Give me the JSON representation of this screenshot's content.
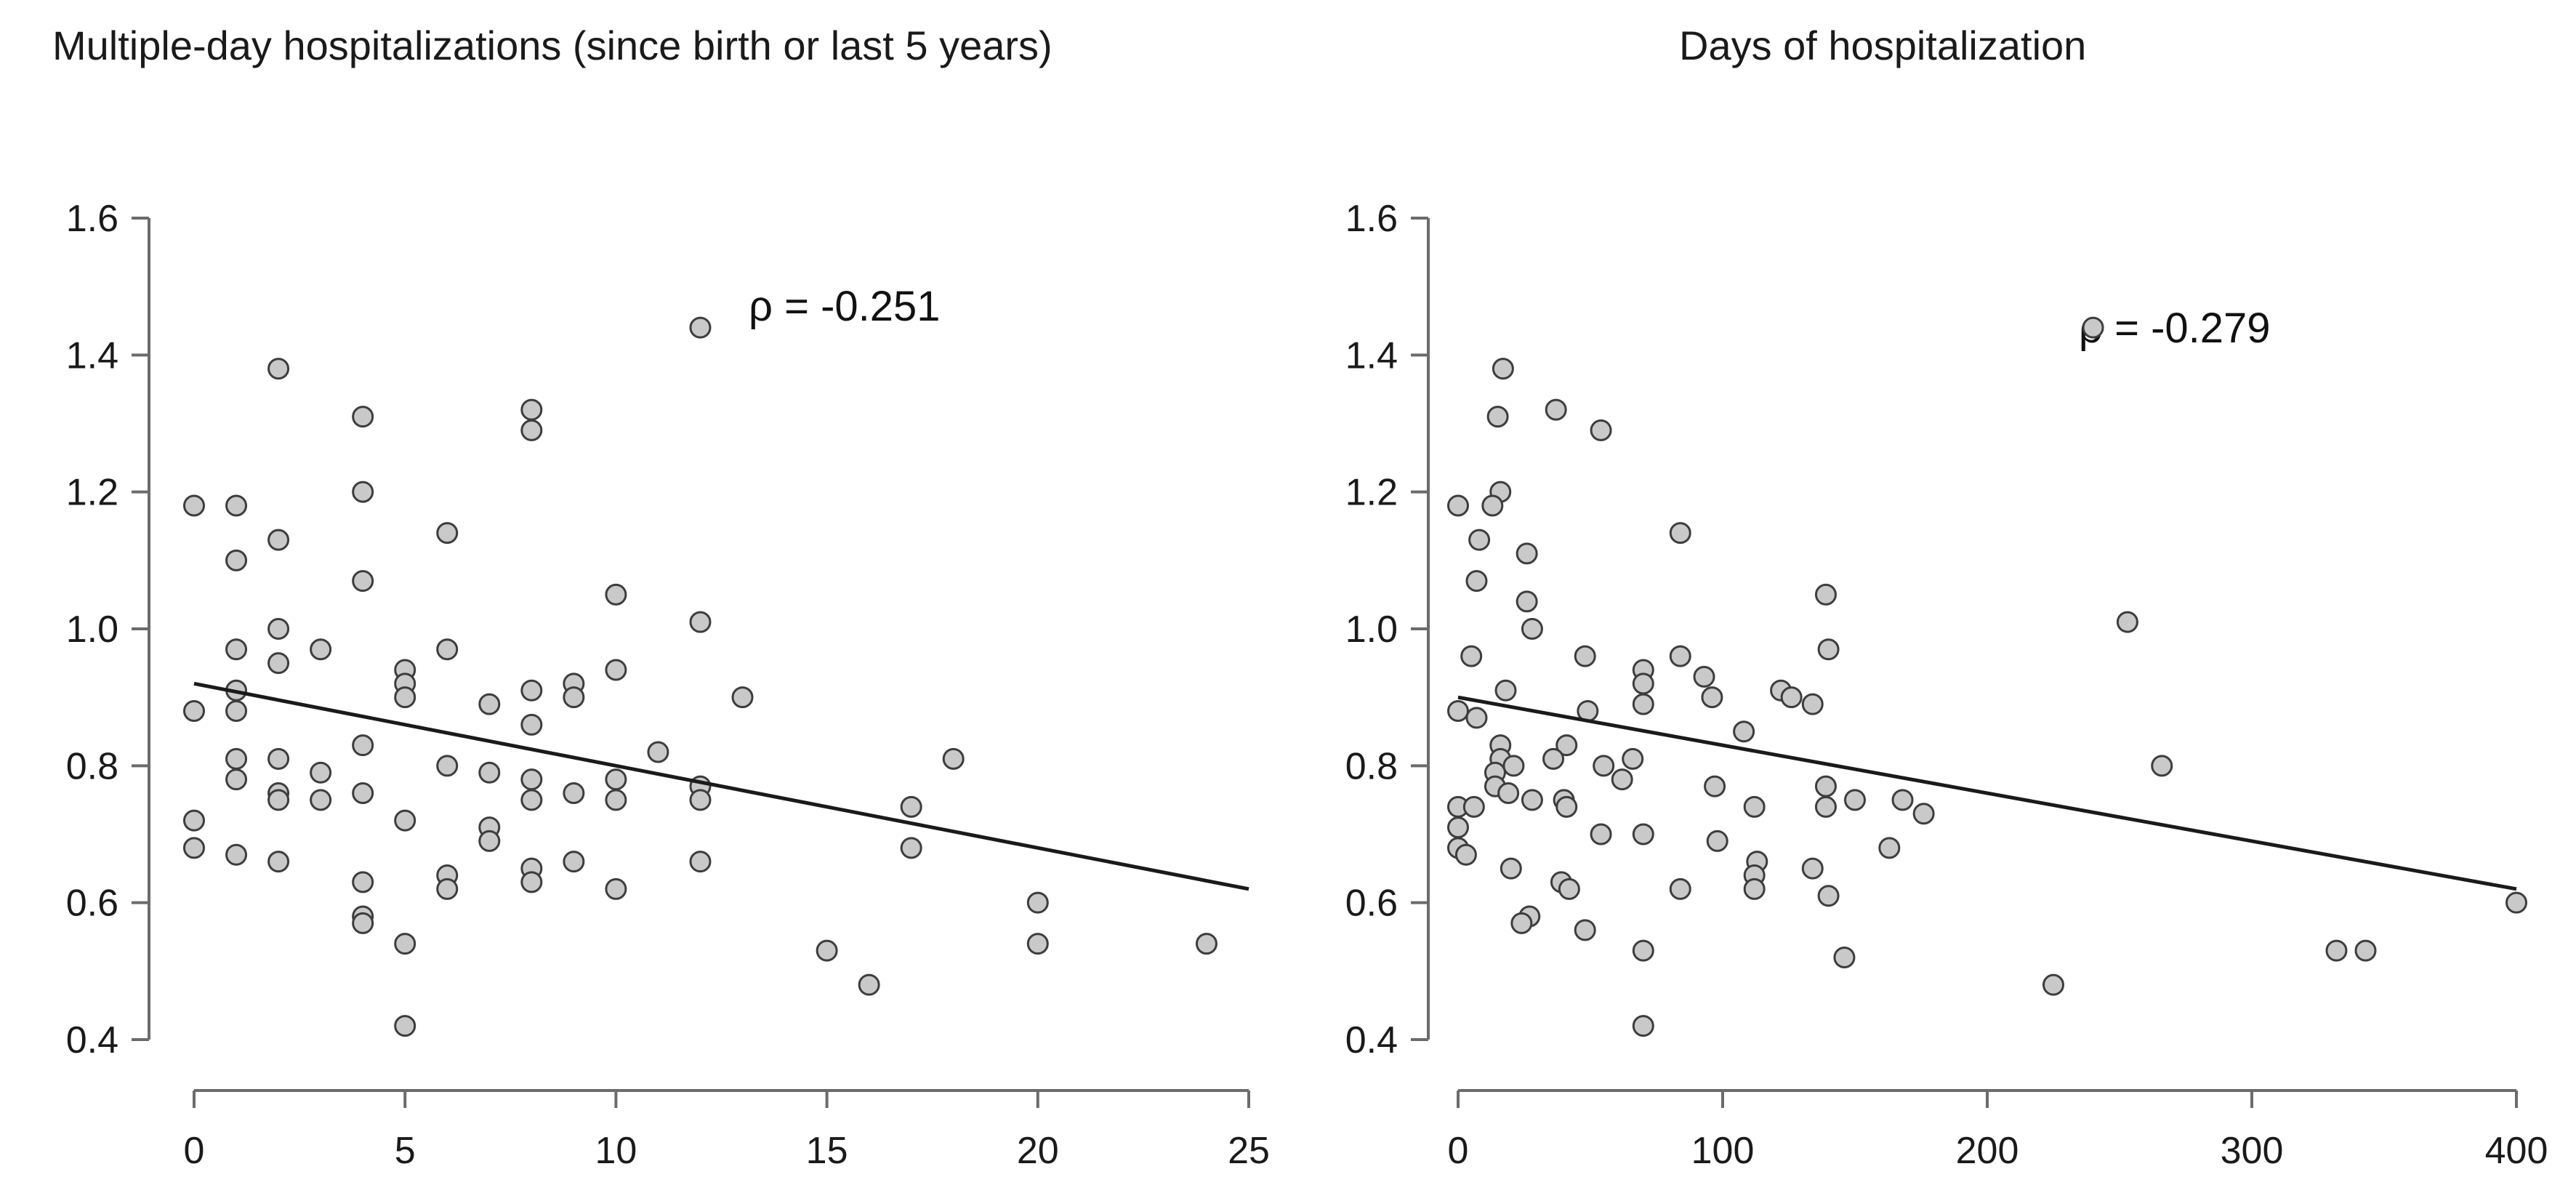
{
  "figure": {
    "background": "#ffffff",
    "text_color": "#1a1a1a",
    "axis_color": "#6b6b6b",
    "point_fill": "#c9c9c9",
    "point_stroke": "#3d3d3d",
    "trend_color": "#1a1a1a"
  },
  "panels": [
    {
      "title": "Multiple-day hospitalizations (since birth or last 5 years)",
      "rho_label": "ρ = -0.251"
    },
    {
      "title": "Days of hospitalization",
      "rho_label": "ρ = -0.279"
    }
  ],
  "chart_data": [
    {
      "type": "scatter",
      "title": "Multiple-day hospitalizations (since birth or last 5 years)",
      "annotation": "ρ = -0.251",
      "xlabel": "",
      "ylabel": "",
      "xlim": [
        0,
        25
      ],
      "ylim": [
        0.4,
        1.6
      ],
      "xticks": [
        0,
        5,
        10,
        15,
        20,
        25
      ],
      "yticks": [
        "1.6",
        "1.4",
        "1.2",
        "1.0",
        "0.8",
        "0.6",
        "0.4"
      ],
      "grid": false,
      "legend": "none",
      "trend_line": {
        "x1": 0,
        "y1": 0.92,
        "x2": 25,
        "y2": 0.62
      },
      "points": [
        [
          12,
          1.44
        ],
        [
          2,
          1.38
        ],
        [
          8,
          1.32
        ],
        [
          4,
          1.31
        ],
        [
          8,
          1.29
        ],
        [
          4,
          1.2
        ],
        [
          0,
          1.18
        ],
        [
          1,
          1.18
        ],
        [
          6,
          1.14
        ],
        [
          2,
          1.13
        ],
        [
          1,
          1.1
        ],
        [
          4,
          1.07
        ],
        [
          10,
          1.05
        ],
        [
          12,
          1.01
        ],
        [
          2,
          1.0
        ],
        [
          1,
          0.97
        ],
        [
          3,
          0.97
        ],
        [
          6,
          0.97
        ],
        [
          2,
          0.95
        ],
        [
          5,
          0.94
        ],
        [
          10,
          0.94
        ],
        [
          5,
          0.92
        ],
        [
          9,
          0.92
        ],
        [
          1,
          0.91
        ],
        [
          8,
          0.91
        ],
        [
          5,
          0.9
        ],
        [
          9,
          0.9
        ],
        [
          13,
          0.9
        ],
        [
          7,
          0.89
        ],
        [
          0,
          0.88
        ],
        [
          1,
          0.88
        ],
        [
          8,
          0.86
        ],
        [
          4,
          0.83
        ],
        [
          11,
          0.82
        ],
        [
          1,
          0.81
        ],
        [
          2,
          0.81
        ],
        [
          18,
          0.81
        ],
        [
          6,
          0.8
        ],
        [
          3,
          0.79
        ],
        [
          7,
          0.79
        ],
        [
          1,
          0.78
        ],
        [
          8,
          0.78
        ],
        [
          10,
          0.78
        ],
        [
          12,
          0.77
        ],
        [
          2,
          0.76
        ],
        [
          4,
          0.76
        ],
        [
          9,
          0.76
        ],
        [
          2,
          0.75
        ],
        [
          3,
          0.75
        ],
        [
          8,
          0.75
        ],
        [
          10,
          0.75
        ],
        [
          12,
          0.75
        ],
        [
          17,
          0.74
        ],
        [
          0,
          0.72
        ],
        [
          5,
          0.72
        ],
        [
          7,
          0.71
        ],
        [
          7,
          0.69
        ],
        [
          0,
          0.68
        ],
        [
          1,
          0.67
        ],
        [
          2,
          0.66
        ],
        [
          9,
          0.66
        ],
        [
          12,
          0.66
        ],
        [
          17,
          0.68
        ],
        [
          6,
          0.64
        ],
        [
          8,
          0.65
        ],
        [
          4,
          0.63
        ],
        [
          8,
          0.63
        ],
        [
          6,
          0.62
        ],
        [
          10,
          0.62
        ],
        [
          20,
          0.6
        ],
        [
          4,
          0.58
        ],
        [
          4,
          0.57
        ],
        [
          5,
          0.54
        ],
        [
          20,
          0.54
        ],
        [
          24,
          0.54
        ],
        [
          15,
          0.53
        ],
        [
          16,
          0.48
        ],
        [
          5,
          0.42
        ]
      ]
    },
    {
      "type": "scatter",
      "title": "Days of hospitalization",
      "annotation": "ρ = -0.279",
      "xlabel": "",
      "ylabel": "",
      "xlim": [
        0,
        400
      ],
      "ylim": [
        0.4,
        1.6
      ],
      "xticks": [
        0,
        100,
        200,
        300,
        400
      ],
      "yticks": [
        "1.6",
        "1.4",
        "1.2",
        "1.0",
        "0.8",
        "0.6",
        "0.4"
      ],
      "grid": false,
      "legend": "none",
      "trend_line": {
        "x1": 0,
        "y1": 0.9,
        "x2": 400,
        "y2": 0.62
      },
      "points": [
        [
          240,
          1.44
        ],
        [
          17,
          1.38
        ],
        [
          37,
          1.32
        ],
        [
          15,
          1.31
        ],
        [
          54,
          1.29
        ],
        [
          16,
          1.2
        ],
        [
          0,
          1.18
        ],
        [
          13,
          1.18
        ],
        [
          84,
          1.14
        ],
        [
          8,
          1.13
        ],
        [
          26,
          1.11
        ],
        [
          7,
          1.07
        ],
        [
          139,
          1.05
        ],
        [
          26,
          1.04
        ],
        [
          253,
          1.01
        ],
        [
          28,
          1.0
        ],
        [
          140,
          0.97
        ],
        [
          84,
          0.96
        ],
        [
          48,
          0.96
        ],
        [
          5,
          0.96
        ],
        [
          70,
          0.94
        ],
        [
          93,
          0.93
        ],
        [
          70,
          0.92
        ],
        [
          122,
          0.91
        ],
        [
          18,
          0.91
        ],
        [
          96,
          0.9
        ],
        [
          126,
          0.9
        ],
        [
          70,
          0.89
        ],
        [
          134,
          0.89
        ],
        [
          49,
          0.88
        ],
        [
          0,
          0.88
        ],
        [
          7,
          0.87
        ],
        [
          108,
          0.85
        ],
        [
          41,
          0.83
        ],
        [
          16,
          0.83
        ],
        [
          66,
          0.81
        ],
        [
          36,
          0.81
        ],
        [
          266,
          0.8
        ],
        [
          16,
          0.81
        ],
        [
          55,
          0.8
        ],
        [
          21,
          0.8
        ],
        [
          14,
          0.79
        ],
        [
          62,
          0.78
        ],
        [
          97,
          0.77
        ],
        [
          139,
          0.77
        ],
        [
          14,
          0.77
        ],
        [
          19,
          0.76
        ],
        [
          168,
          0.75
        ],
        [
          40,
          0.75
        ],
        [
          28,
          0.75
        ],
        [
          150,
          0.75
        ],
        [
          41,
          0.74
        ],
        [
          0,
          0.74
        ],
        [
          6,
          0.74
        ],
        [
          139,
          0.74
        ],
        [
          112,
          0.74
        ],
        [
          176,
          0.73
        ],
        [
          54,
          0.7
        ],
        [
          70,
          0.7
        ],
        [
          0,
          0.71
        ],
        [
          98,
          0.69
        ],
        [
          0,
          0.68
        ],
        [
          3,
          0.67
        ],
        [
          163,
          0.68
        ],
        [
          113,
          0.66
        ],
        [
          20,
          0.65
        ],
        [
          112,
          0.64
        ],
        [
          134,
          0.65
        ],
        [
          112,
          0.62
        ],
        [
          84,
          0.62
        ],
        [
          140,
          0.61
        ],
        [
          39,
          0.63
        ],
        [
          42,
          0.62
        ],
        [
          27,
          0.58
        ],
        [
          24,
          0.57
        ],
        [
          48,
          0.56
        ],
        [
          70,
          0.53
        ],
        [
          146,
          0.52
        ],
        [
          225,
          0.48
        ],
        [
          332,
          0.53
        ],
        [
          343,
          0.53
        ],
        [
          400,
          0.6
        ],
        [
          70,
          0.42
        ]
      ]
    }
  ]
}
